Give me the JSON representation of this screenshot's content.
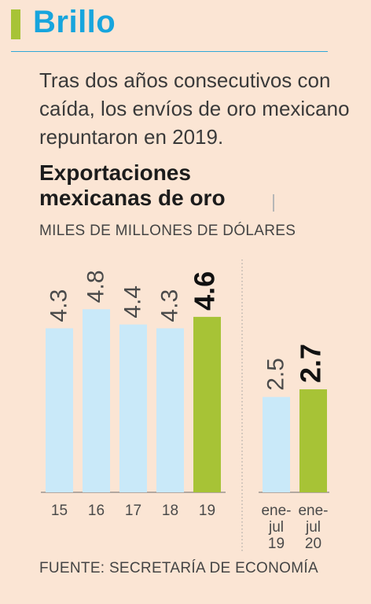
{
  "header": {
    "title": "Brillo"
  },
  "lead": "Tras dos años consecutivos con caída, los envíos de oro mexicano repuntaron en 2019.",
  "source": "FUENTE: SECRETARÍA DE ECONOMÍA",
  "colors": {
    "base_bar": "#c9e9f9",
    "highlight_bar": "#a7c336",
    "accent_blue": "#17a5dd"
  },
  "chart_data": {
    "type": "bar",
    "title_lines": [
      "Exportaciones",
      "mexicanas de oro"
    ],
    "ylabel": "MILES DE MILLONES DE DÓLARES",
    "groups": [
      {
        "categories": [
          "15",
          "16",
          "17",
          "18",
          "19"
        ],
        "values": [
          4.3,
          4.8,
          4.4,
          4.3,
          4.6
        ],
        "labels": [
          "4.3",
          "4.8",
          "4.4",
          "4.3",
          "4.6"
        ],
        "highlight": [
          false,
          false,
          false,
          false,
          true
        ]
      },
      {
        "categories": [
          [
            "ene-",
            "jul",
            "19"
          ],
          [
            "ene-",
            "jul",
            "20"
          ]
        ],
        "values": [
          2.5,
          2.7
        ],
        "labels": [
          "2.5",
          "2.7"
        ],
        "highlight": [
          false,
          true
        ]
      }
    ],
    "ylim": [
      0,
      4.8
    ],
    "grid": false,
    "legend": "none"
  }
}
